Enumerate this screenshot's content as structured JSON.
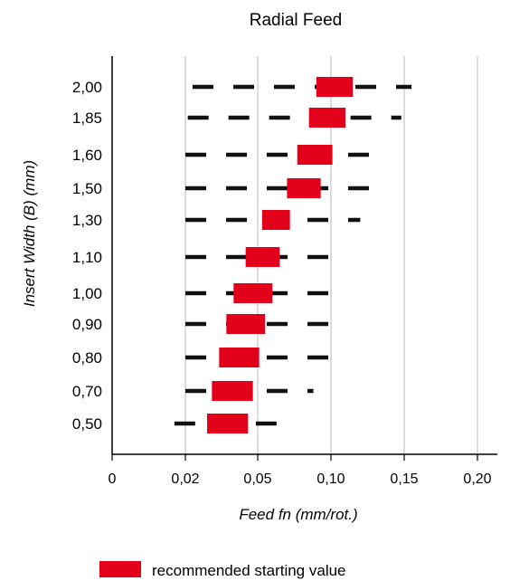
{
  "chart_data": {
    "type": "bar",
    "title": "Radial Feed",
    "xlabel": "Feed fn (mm/rot.)",
    "ylabel": "Insert Width (B) (mm)",
    "x_ticks": [
      {
        "value": 0,
        "label": "0"
      },
      {
        "value": 0.02,
        "label": "0,02"
      },
      {
        "value": 0.05,
        "label": "0,05"
      },
      {
        "value": 0.1,
        "label": "0,10"
      },
      {
        "value": 0.15,
        "label": "0,15"
      },
      {
        "value": 0.2,
        "label": "0,20"
      }
    ],
    "grid": "vertical",
    "categories": [
      "2,00",
      "1,85",
      "1,60",
      "1,50",
      "1,30",
      "1,10",
      "1,00",
      "0,90",
      "0,80",
      "0,70",
      "0,50"
    ],
    "rows": [
      {
        "width": "2,00",
        "range": [
          0.023,
          0.155
        ],
        "recommended": [
          0.09,
          0.115
        ]
      },
      {
        "width": "1,85",
        "range": [
          0.021,
          0.148
        ],
        "recommended": [
          0.085,
          0.11
        ]
      },
      {
        "width": "1,60",
        "range": [
          0.02,
          0.136
        ],
        "recommended": [
          0.077,
          0.101
        ]
      },
      {
        "width": "1,50",
        "range": [
          0.02,
          0.135
        ],
        "recommended": [
          0.07,
          0.093
        ]
      },
      {
        "width": "1,30",
        "range": [
          0.02,
          0.12
        ],
        "recommended": [
          0.053,
          0.072
        ]
      },
      {
        "width": "1,10",
        "range": [
          0.02,
          0.11
        ],
        "recommended": [
          0.045,
          0.065
        ]
      },
      {
        "width": "1,00",
        "range": [
          0.02,
          0.105
        ],
        "recommended": [
          0.04,
          0.06
        ]
      },
      {
        "width": "0,90",
        "range": [
          0.02,
          0.104
        ],
        "recommended": [
          0.037,
          0.055
        ]
      },
      {
        "width": "0,80",
        "range": [
          0.02,
          0.1
        ],
        "recommended": [
          0.034,
          0.051
        ]
      },
      {
        "width": "0,70",
        "range": [
          0.02,
          0.088
        ],
        "recommended": [
          0.031,
          0.048
        ]
      },
      {
        "width": "0,50",
        "range": [
          0.017,
          0.07
        ],
        "recommended": [
          0.029,
          0.046
        ]
      }
    ],
    "series": [
      {
        "name": "recommended starting value",
        "color": "#e3001b",
        "style": "solid bar"
      },
      {
        "color": "#111111",
        "style": "dashed line"
      }
    ]
  }
}
